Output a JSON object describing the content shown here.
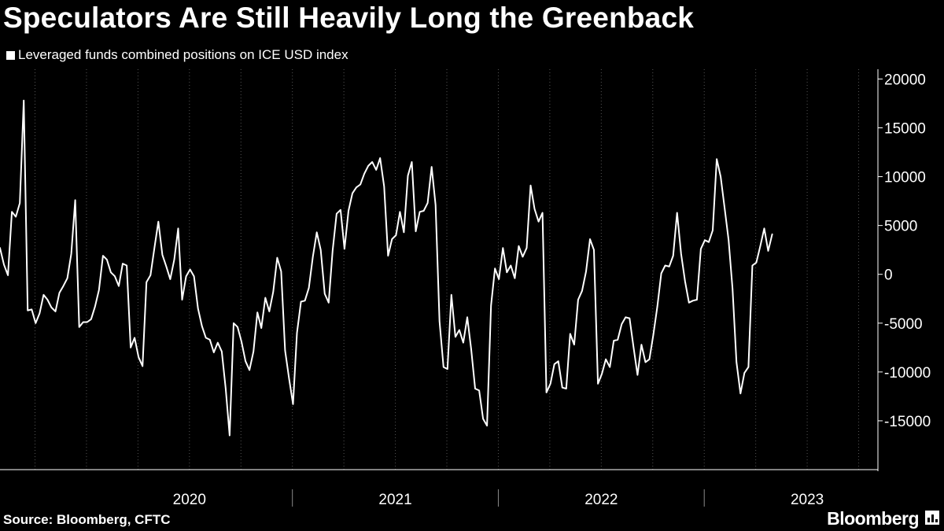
{
  "title": "Speculators Are Still Heavily Long the Greenback",
  "legend": {
    "label": "Leveraged funds combined positions on ICE USD index",
    "color": "#ffffff"
  },
  "source": "Source: Bloomberg, CFTC",
  "brand": "Bloomberg",
  "colors": {
    "background": "#000000",
    "line": "#ffffff",
    "grid": "#555555",
    "text": "#ffffff"
  },
  "chart_data": {
    "type": "line",
    "title": "Speculators Are Still Heavily Long the Greenback",
    "xlabel": "",
    "ylabel": "",
    "ylim": [
      -20000,
      21000
    ],
    "y_ticks": [
      20000,
      15000,
      10000,
      5000,
      0,
      -5000,
      -10000,
      -15000
    ],
    "y_tick_labels": [
      "20000",
      "15000",
      "10000",
      "5000",
      "0",
      "-5000",
      "-10000",
      "-15000"
    ],
    "y_axis_position": "right",
    "x_range": [
      2019.58,
      2023.79
    ],
    "year_labels": [
      {
        "label": "2020",
        "x": 2020.5
      },
      {
        "label": "2021",
        "x": 2021.5
      },
      {
        "label": "2022",
        "x": 2022.5
      },
      {
        "label": "2023",
        "x": 2023.5
      }
    ],
    "year_boundaries": [
      2021,
      2022,
      2023
    ],
    "quarter_gridlines": [
      2019.75,
      2020.0,
      2020.25,
      2020.5,
      2020.75,
      2021.0,
      2021.25,
      2021.5,
      2021.75,
      2022.0,
      2022.25,
      2022.5,
      2022.75,
      2023.0,
      2023.25,
      2023.5,
      2023.75
    ],
    "grid": true,
    "legend_position": "top-left",
    "series": [
      {
        "name": "Leveraged funds combined positions on ICE USD index",
        "start": 2019.58,
        "step": 0.01923,
        "values": [
          2700,
          1000,
          -100,
          6400,
          5900,
          7300,
          17800,
          -3700,
          -3600,
          -5000,
          -4000,
          -2100,
          -2600,
          -3400,
          -3800,
          -1900,
          -1200,
          -400,
          2100,
          7600,
          -5400,
          -4900,
          -4900,
          -4600,
          -3300,
          -1600,
          1900,
          1500,
          200,
          -200,
          -1200,
          1100,
          900,
          -7500,
          -6500,
          -8500,
          -9400,
          -800,
          -100,
          2700,
          5400,
          2000,
          800,
          -500,
          1500,
          4700,
          -2600,
          -200,
          500,
          -200,
          -3500,
          -5300,
          -6500,
          -6700,
          -8000,
          -7000,
          -7900,
          -11700,
          -16500,
          -5000,
          -5400,
          -6900,
          -8900,
          -9800,
          -7900,
          -3900,
          -5500,
          -2400,
          -3800,
          -1800,
          1700,
          300,
          -7800,
          -10700,
          -13300,
          -6000,
          -2800,
          -2700,
          -1400,
          1800,
          4300,
          2500,
          -2000,
          -2900,
          2400,
          6200,
          6600,
          2600,
          6500,
          8300,
          8900,
          9200,
          10300,
          11100,
          11500,
          10700,
          11900,
          9000,
          1900,
          3600,
          4000,
          6400,
          4300,
          10100,
          11500,
          4400,
          6400,
          6500,
          7300,
          11000,
          7100,
          -4800,
          -9500,
          -9700,
          -2100,
          -6400,
          -5700,
          -7000,
          -4400,
          -7700,
          -11700,
          -11900,
          -14800,
          -15500,
          -3200,
          600,
          -500,
          2700,
          200,
          900,
          -400,
          2900,
          1800,
          2700,
          9100,
          6700,
          5400,
          6300,
          -12100,
          -11200,
          -9200,
          -8900,
          -11600,
          -11700,
          -6100,
          -7200,
          -2600,
          -1700,
          300,
          3600,
          2500,
          -11200,
          -10200,
          -8700,
          -9500,
          -6800,
          -6700,
          -5100,
          -4400,
          -4500,
          -7500,
          -10300,
          -7200,
          -9000,
          -8700,
          -6200,
          -3300,
          100,
          900,
          800,
          1900,
          6300,
          2100,
          -700,
          -2900,
          -2700,
          -2600,
          2600,
          3500,
          3300,
          4500,
          11800,
          10000,
          6800,
          3500,
          -1500,
          -9000,
          -12200,
          -10100,
          -9500,
          900,
          1200,
          2900,
          4700,
          2400,
          4100
        ]
      }
    ]
  }
}
